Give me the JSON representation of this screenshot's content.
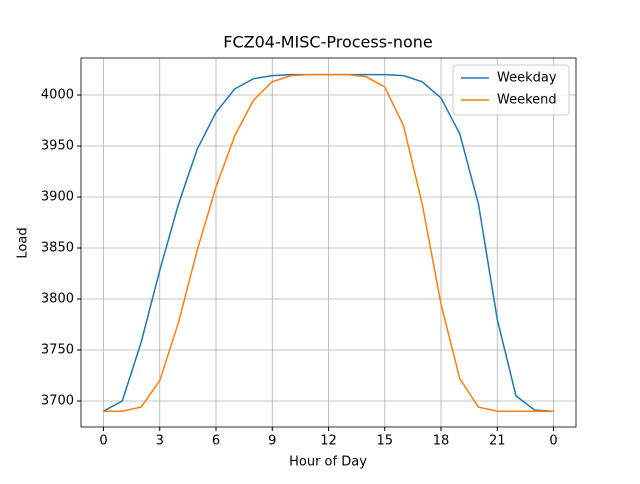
{
  "chart_data": {
    "type": "line",
    "title": "FCZ04-MISC-Process-none",
    "xlabel": "Hour of Day",
    "ylabel": "Load",
    "x": [
      0,
      1,
      2,
      3,
      4,
      5,
      6,
      7,
      8,
      9,
      10,
      11,
      12,
      13,
      14,
      15,
      16,
      17,
      18,
      19,
      20,
      21,
      22,
      23,
      24
    ],
    "series": [
      {
        "name": "Weekday",
        "color": "#1f77b4",
        "values": [
          3690,
          3700,
          3757,
          3828,
          3893,
          3947,
          3983,
          4006,
          4016,
          4019,
          4020,
          4020,
          4020,
          4020,
          4020,
          4020,
          4019,
          4013,
          3997,
          3962,
          3893,
          3780,
          3705,
          3691,
          3690
        ]
      },
      {
        "name": "Weekend",
        "color": "#ff7f0e",
        "values": [
          3690,
          3690,
          3694,
          3720,
          3777,
          3848,
          3910,
          3960,
          3995,
          4013,
          4019,
          4020,
          4020,
          4020,
          4018,
          4008,
          3970,
          3893,
          3795,
          3722,
          3694,
          3690,
          3690,
          3690,
          3690
        ]
      }
    ],
    "xlim": [
      -1.2,
      25.2
    ],
    "ylim": [
      3674.5,
      4036.3
    ],
    "xticks": [
      0,
      3,
      6,
      9,
      12,
      15,
      18,
      21,
      {
        "value": 24,
        "label": "0"
      }
    ],
    "yticks": [
      3700,
      3750,
      3800,
      3850,
      3900,
      3950,
      4000
    ],
    "grid": true,
    "legend": "upper-right"
  }
}
